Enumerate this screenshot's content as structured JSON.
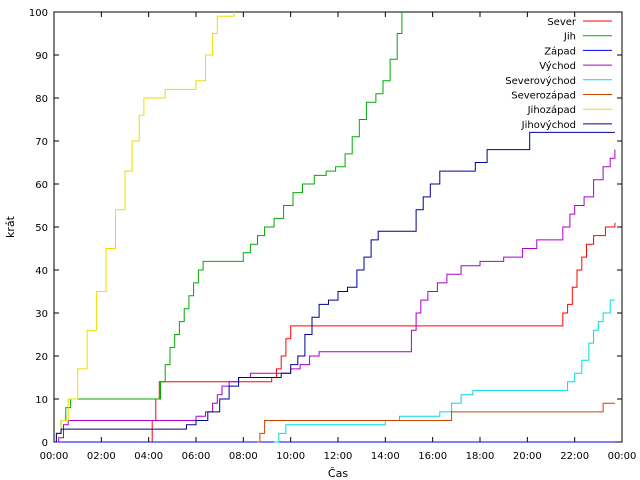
{
  "chart_data": {
    "type": "line",
    "title": "",
    "xlabel": "Čas",
    "ylabel": "krát",
    "xlim": [
      0,
      24
    ],
    "ylim": [
      0,
      100
    ],
    "xticks": [
      "00:00",
      "02:00",
      "04:00",
      "06:00",
      "08:00",
      "10:00",
      "12:00",
      "14:00",
      "16:00",
      "18:00",
      "20:00",
      "22:00",
      "00:00"
    ],
    "yticks": [
      0,
      10,
      20,
      30,
      40,
      50,
      60,
      70,
      80,
      90,
      100
    ],
    "grid": false,
    "legend": "top-right",
    "series": [
      {
        "name": "Sever",
        "color": "#ff0000",
        "points": [
          [
            0,
            0
          ],
          [
            4.05,
            0
          ],
          [
            4.15,
            5
          ],
          [
            4.3,
            10
          ],
          [
            4.45,
            14
          ],
          [
            9.0,
            14
          ],
          [
            9.2,
            15
          ],
          [
            9.4,
            17
          ],
          [
            9.6,
            20
          ],
          [
            9.8,
            24
          ],
          [
            10.0,
            27
          ],
          [
            21.4,
            27
          ],
          [
            21.5,
            30
          ],
          [
            21.7,
            32
          ],
          [
            21.9,
            36
          ],
          [
            22.1,
            40
          ],
          [
            22.3,
            43
          ],
          [
            22.5,
            46
          ],
          [
            22.8,
            48
          ],
          [
            23.3,
            50
          ],
          [
            23.6,
            50
          ],
          [
            23.7,
            51
          ]
        ]
      },
      {
        "name": "Jih",
        "color": "#00aa00",
        "points": [
          [
            0,
            0
          ],
          [
            0.1,
            2
          ],
          [
            0.3,
            5
          ],
          [
            0.5,
            8
          ],
          [
            0.7,
            10
          ],
          [
            4.3,
            10
          ],
          [
            4.5,
            14
          ],
          [
            4.7,
            18
          ],
          [
            4.9,
            22
          ],
          [
            5.1,
            25
          ],
          [
            5.3,
            28
          ],
          [
            5.5,
            31
          ],
          [
            5.7,
            34
          ],
          [
            5.9,
            37
          ],
          [
            6.1,
            40
          ],
          [
            6.3,
            42
          ],
          [
            7.7,
            42
          ],
          [
            8.0,
            44
          ],
          [
            8.3,
            46
          ],
          [
            8.6,
            48
          ],
          [
            8.9,
            50
          ],
          [
            9.3,
            52
          ],
          [
            9.7,
            55
          ],
          [
            10.1,
            58
          ],
          [
            10.5,
            60
          ],
          [
            11.0,
            62
          ],
          [
            11.5,
            63
          ],
          [
            11.9,
            64
          ],
          [
            12.3,
            67
          ],
          [
            12.6,
            71
          ],
          [
            12.9,
            75
          ],
          [
            13.2,
            79
          ],
          [
            13.6,
            81
          ],
          [
            13.9,
            84
          ],
          [
            14.2,
            89
          ],
          [
            14.5,
            95
          ],
          [
            14.7,
            100
          ]
        ]
      },
      {
        "name": "Západ",
        "color": "#0000ff",
        "points": [
          [
            0,
            0
          ],
          [
            23.7,
            0
          ]
        ]
      },
      {
        "name": "Východ",
        "color": "#aa00cc",
        "points": [
          [
            0,
            0
          ],
          [
            0.2,
            1
          ],
          [
            0.4,
            4
          ],
          [
            0.6,
            5
          ],
          [
            4.5,
            5
          ],
          [
            5.6,
            5
          ],
          [
            6.0,
            6
          ],
          [
            6.4,
            7
          ],
          [
            6.7,
            9
          ],
          [
            6.9,
            11
          ],
          [
            7.1,
            13
          ],
          [
            7.4,
            14
          ],
          [
            7.8,
            15
          ],
          [
            8.3,
            16
          ],
          [
            9.6,
            16
          ],
          [
            10.0,
            17
          ],
          [
            10.4,
            18
          ],
          [
            10.8,
            20
          ],
          [
            11.2,
            21
          ],
          [
            14.9,
            21
          ],
          [
            15.1,
            26
          ],
          [
            15.3,
            30
          ],
          [
            15.5,
            33
          ],
          [
            15.8,
            35
          ],
          [
            16.2,
            37
          ],
          [
            16.6,
            39
          ],
          [
            17.2,
            41
          ],
          [
            18.0,
            42
          ],
          [
            19.0,
            43
          ],
          [
            19.8,
            45
          ],
          [
            20.4,
            47
          ],
          [
            21.3,
            47
          ],
          [
            21.5,
            50
          ],
          [
            21.8,
            53
          ],
          [
            22.0,
            55
          ],
          [
            22.4,
            57
          ],
          [
            22.8,
            61
          ],
          [
            23.2,
            64
          ],
          [
            23.5,
            66
          ],
          [
            23.7,
            68
          ]
        ]
      },
      {
        "name": "Severovýchod",
        "color": "#00dddd",
        "points": [
          [
            9.3,
            0
          ],
          [
            9.5,
            2
          ],
          [
            9.8,
            4
          ],
          [
            13.5,
            4
          ],
          [
            14.0,
            5
          ],
          [
            14.6,
            6
          ],
          [
            15.8,
            6
          ],
          [
            16.3,
            7
          ],
          [
            16.8,
            9
          ],
          [
            17.2,
            11
          ],
          [
            17.7,
            12
          ],
          [
            21.4,
            12
          ],
          [
            21.7,
            14
          ],
          [
            22.0,
            16
          ],
          [
            22.3,
            19
          ],
          [
            22.6,
            23
          ],
          [
            22.8,
            26
          ],
          [
            23.0,
            28
          ],
          [
            23.2,
            30
          ],
          [
            23.5,
            33
          ],
          [
            23.7,
            33
          ]
        ]
      },
      {
        "name": "Severozápad",
        "color": "#cc4400",
        "points": [
          [
            8.6,
            0
          ],
          [
            8.7,
            2
          ],
          [
            8.9,
            5
          ],
          [
            16.7,
            5
          ],
          [
            16.8,
            7
          ],
          [
            23.0,
            7
          ],
          [
            23.2,
            9
          ],
          [
            23.7,
            9
          ]
        ]
      },
      {
        "name": "Jihozápad",
        "color": "#eedd00",
        "points": [
          [
            0,
            0
          ],
          [
            0.1,
            2
          ],
          [
            0.3,
            5
          ],
          [
            0.6,
            10
          ],
          [
            1.0,
            17
          ],
          [
            1.4,
            26
          ],
          [
            1.8,
            35
          ],
          [
            2.2,
            45
          ],
          [
            2.6,
            54
          ],
          [
            3.0,
            63
          ],
          [
            3.3,
            70
          ],
          [
            3.6,
            76
          ],
          [
            3.8,
            80
          ],
          [
            4.5,
            80
          ],
          [
            4.7,
            82
          ],
          [
            5.6,
            82
          ],
          [
            6.0,
            84
          ],
          [
            6.2,
            84
          ],
          [
            6.4,
            90
          ],
          [
            6.7,
            95
          ],
          [
            6.9,
            99
          ],
          [
            7.6,
            100
          ]
        ]
      },
      {
        "name": "Jihovýchod",
        "color": "#000099",
        "points": [
          [
            0,
            0
          ],
          [
            0.1,
            2
          ],
          [
            0.3,
            3
          ],
          [
            5.4,
            3
          ],
          [
            5.6,
            4
          ],
          [
            6.0,
            5
          ],
          [
            6.5,
            7
          ],
          [
            7.0,
            10
          ],
          [
            7.4,
            13
          ],
          [
            7.8,
            15
          ],
          [
            8.6,
            15
          ],
          [
            9.1,
            15
          ],
          [
            9.6,
            16
          ],
          [
            10.0,
            18
          ],
          [
            10.3,
            20
          ],
          [
            10.6,
            25
          ],
          [
            10.9,
            29
          ],
          [
            11.2,
            32
          ],
          [
            11.6,
            33
          ],
          [
            12.0,
            35
          ],
          [
            12.4,
            36
          ],
          [
            12.8,
            40
          ],
          [
            13.1,
            43
          ],
          [
            13.4,
            47
          ],
          [
            13.7,
            49
          ],
          [
            14.9,
            49
          ],
          [
            15.3,
            54
          ],
          [
            15.6,
            57
          ],
          [
            15.9,
            60
          ],
          [
            16.3,
            63
          ],
          [
            17.5,
            63
          ],
          [
            17.8,
            65
          ],
          [
            18.3,
            68
          ],
          [
            19.7,
            68
          ],
          [
            20.1,
            72
          ],
          [
            23.7,
            72
          ]
        ]
      }
    ]
  }
}
